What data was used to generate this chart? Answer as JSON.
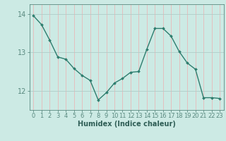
{
  "x": [
    0,
    1,
    2,
    3,
    4,
    5,
    6,
    7,
    8,
    9,
    10,
    11,
    12,
    13,
    14,
    15,
    16,
    17,
    18,
    19,
    20,
    21,
    22,
    23
  ],
  "y": [
    13.95,
    13.72,
    13.32,
    12.88,
    12.82,
    12.58,
    12.4,
    12.27,
    11.76,
    11.95,
    12.2,
    12.32,
    12.48,
    12.5,
    13.08,
    13.62,
    13.62,
    13.42,
    13.02,
    12.72,
    12.56,
    11.82,
    11.82,
    11.8
  ],
  "line_color": "#2e7d6e",
  "marker": "D",
  "marker_size": 2.0,
  "line_width": 1.0,
  "bg_color": "#cceae4",
  "vgrid_color": "#e8b8b8",
  "hgrid_color": "#b0ccc8",
  "axis_color": "#5a8a80",
  "tick_label_color": "#2e5d55",
  "xlabel": "Humidex (Indice chaleur)",
  "xlabel_fontsize": 7,
  "xlabel_color": "#2e5d55",
  "ylim": [
    11.5,
    14.25
  ],
  "xlim": [
    -0.5,
    23.5
  ],
  "yticks": [
    12,
    13,
    14
  ],
  "xticks": [
    0,
    1,
    2,
    3,
    4,
    5,
    6,
    7,
    8,
    9,
    10,
    11,
    12,
    13,
    14,
    15,
    16,
    17,
    18,
    19,
    20,
    21,
    22,
    23
  ],
  "tick_fontsize": 6,
  "ytick_fontsize": 7
}
